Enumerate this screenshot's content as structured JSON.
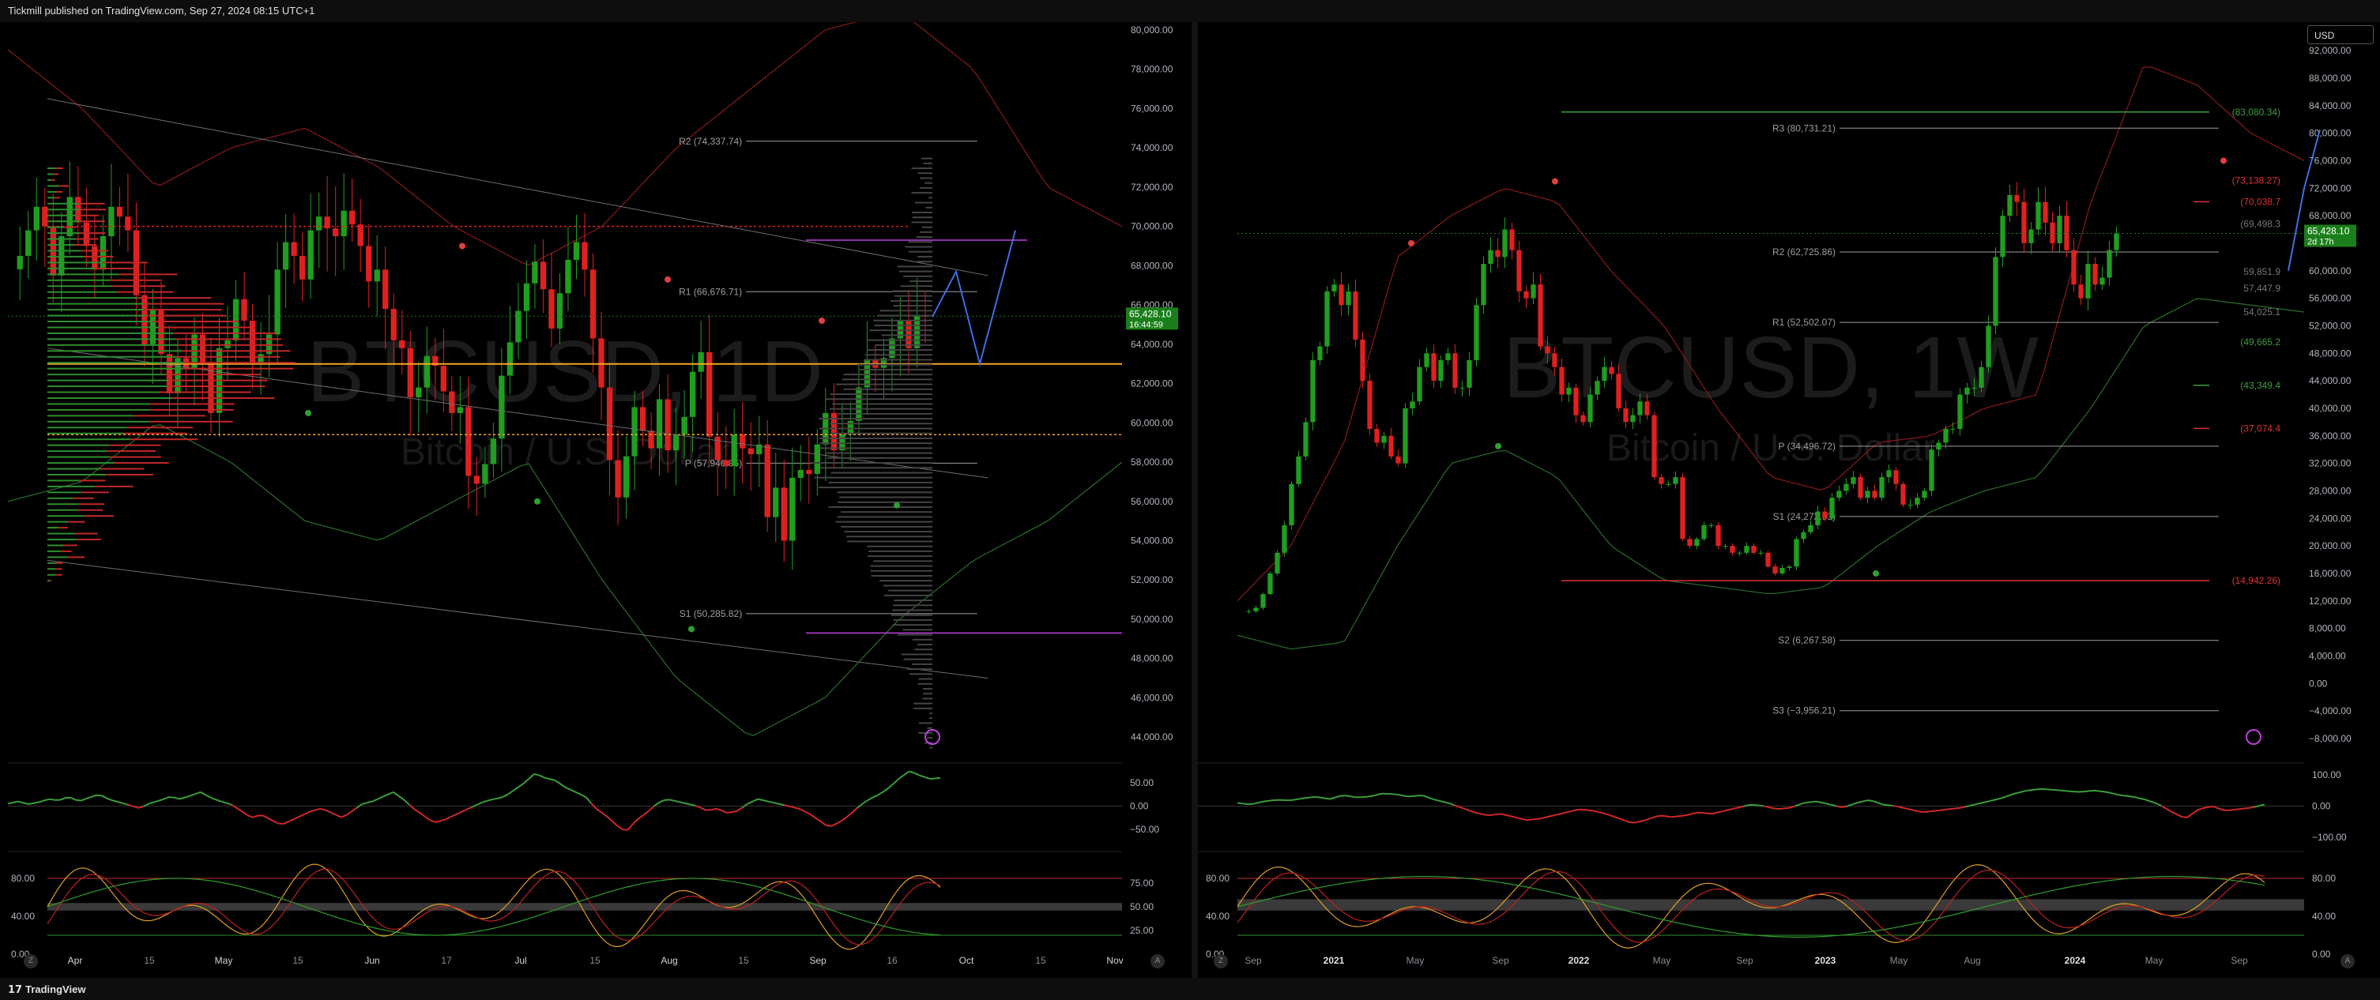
{
  "header": {
    "publisher": "Tickmill published on TradingView.com, Sep 27, 2024 08:15 UTC+1"
  },
  "footer": {
    "brand": "TradingView",
    "brand_mark": "17"
  },
  "currency_button": "USD",
  "corner_labels": {
    "left_z": "Z",
    "left_a": "A",
    "right_z": "Z",
    "right_a": "A"
  },
  "colors": {
    "bull": "#1f9e1f",
    "bear": "#e02020",
    "bg": "#000000",
    "price_tag": "#1a7f1a",
    "pivot_line": "#9e9e9e",
    "vpoc": "#f5a623",
    "purple": "#c040e0",
    "blue": "#3f6fe0"
  },
  "chart_data": [
    {
      "type": "line",
      "title": "BTCUSD, 1D",
      "subtitle": "Bitcoin / U.S. Dollar",
      "y_ticks": [
        "80,000.00",
        "78,000.00",
        "76,000.00",
        "74,000.00",
        "72,000.00",
        "70,000.00",
        "68,000.00",
        "66,000.00",
        "64,000.00",
        "62,000.00",
        "60,000.00",
        "58,000.00",
        "56,000.00",
        "54,000.00",
        "52,000.00",
        "50,000.00",
        "48,000.00",
        "46,000.00",
        "44,000.00"
      ],
      "ylim": [
        43000,
        80000
      ],
      "x_ticks": [
        "Apr",
        "15",
        "May",
        "15",
        "Jun",
        "17",
        "Jul",
        "15",
        "Aug",
        "15",
        "Sep",
        "16",
        "Oct",
        "15",
        "Nov"
      ],
      "last_price": "65,428.10",
      "countdown": "16:44:59",
      "pivots": [
        {
          "label": "R2 (74,337.74)",
          "value": 74337.74
        },
        {
          "label": "R1 (66,676.71)",
          "value": 66676.71
        },
        {
          "label": "P (57,946.85)",
          "value": 57946.85
        },
        {
          "label": "S1 (50,285.82)",
          "value": 50285.82
        }
      ],
      "horizontal_levels": [
        {
          "name": "orange",
          "value": 63000
        },
        {
          "name": "orange-dotted",
          "value": 59400
        },
        {
          "name": "red-dotted",
          "value": 70000
        },
        {
          "name": "purple-top",
          "value": 69300
        },
        {
          "name": "purple-bottom",
          "value": 49300
        }
      ],
      "price_series": [
        68500,
        69800,
        71000,
        70000,
        67500,
        69500,
        71500,
        70200,
        69000,
        67800,
        69500,
        71000,
        70500,
        69800,
        66500,
        64000,
        65800,
        63500,
        61500,
        63300,
        62800,
        64500,
        63000,
        60500,
        63800,
        64200,
        66300,
        65200,
        63000,
        63500,
        64500,
        67800,
        69200,
        68500,
        67300,
        69800,
        70500,
        69900,
        69500,
        70800,
        70100,
        69000,
        67200,
        67800,
        65800,
        64200,
        63800,
        61300,
        61800,
        63400,
        62900,
        61600,
        60500,
        60800,
        57300,
        56900,
        57900,
        59200,
        62400,
        64100,
        65700,
        67100,
        68200,
        66800,
        64800,
        66600,
        68300,
        69200,
        67800,
        64300,
        61800,
        58100,
        56200,
        58300,
        60800,
        59600,
        58700,
        61200,
        58600,
        59400,
        60300,
        62600,
        63600,
        59300,
        58100,
        57800,
        59400,
        58700,
        58400,
        58900,
        55200,
        56700,
        54000,
        57200,
        57600,
        57400,
        58900,
        60500,
        58600,
        59400,
        60100,
        61800,
        63200,
        62800,
        63300,
        64300,
        65200,
        63800,
        65500,
        65400
      ],
      "series": [
        {
          "name": "upper-band",
          "values": [
            79000,
            76000,
            72000,
            74000,
            75000,
            73000,
            70000,
            68000,
            70000,
            74000,
            77000,
            80000,
            81000,
            78000,
            72000,
            70000
          ]
        },
        {
          "name": "lower-band",
          "values": [
            56000,
            57000,
            60000,
            58000,
            55000,
            54000,
            56000,
            58000,
            52000,
            47000,
            44000,
            46000,
            50000,
            53000,
            55000,
            58000
          ]
        }
      ]
    },
    {
      "type": "line",
      "title": "BTCUSD, 1W",
      "subtitle": "Bitcoin / U.S. Dollar",
      "y_ticks": [
        "92,000.00",
        "88,000.00",
        "84,000.00",
        "80,000.00",
        "76,000.00",
        "72,000.00",
        "68,000.00",
        "64,000.00",
        "60,000.00",
        "56,000.00",
        "52,000.00",
        "48,000.00",
        "44,000.00",
        "40,000.00",
        "36,000.00",
        "32,000.00",
        "28,000.00",
        "24,000.00",
        "20,000.00",
        "16,000.00",
        "12,000.00",
        "8,000.00",
        "4,000.00",
        "0.00",
        "−4,000.00",
        "−8,000.00"
      ],
      "ylim": [
        -9500,
        95000
      ],
      "x_ticks": [
        "Sep",
        "2021",
        "May",
        "Sep",
        "2022",
        "May",
        "Sep",
        "2023",
        "May",
        "Aug",
        "2024",
        "May",
        "Sep"
      ],
      "last_price": "65,428.10",
      "countdown": "2d 17h",
      "pivots": [
        {
          "label": "R3 (80,731.21)",
          "value": 80731.21
        },
        {
          "label": "R2 (62,725.86)",
          "value": 62725.86
        },
        {
          "label": "R1 (52,502.07)",
          "value": 52502.07
        },
        {
          "label": "P (34,496.72)",
          "value": 34496.72
        },
        {
          "label": "S1 (24,272.93)",
          "value": 24272.93
        },
        {
          "label": "S2 (6,267.58)",
          "value": 6267.58
        },
        {
          "label": "S3 (−3,956.21)",
          "value": -3956.21
        }
      ],
      "right_labels": [
        {
          "label": "(83,080.34)",
          "value": 83080.34,
          "color": "#3d9e3d"
        },
        {
          "label": "(73,138.27)",
          "value": 73138.27,
          "color": "#e03030"
        },
        {
          "label": "(70,038.7",
          "value": 70038.7,
          "color": "#e03030"
        },
        {
          "label": "(69,498.3",
          "value": 66800,
          "color": "#777777"
        },
        {
          "label": "59,851.9",
          "value": 59851.9,
          "color": "#777777"
        },
        {
          "label": "57,447.9",
          "value": 57447.9,
          "color": "#777777"
        },
        {
          "label": "54,025.1",
          "value": 54025.1,
          "color": "#777777"
        },
        {
          "label": "(49,665.2",
          "value": 49665.2,
          "color": "#3d9e3d"
        },
        {
          "label": "(43,349.4",
          "value": 43349.4,
          "color": "#3d9e3d"
        },
        {
          "label": "(37,074.4",
          "value": 37074.4,
          "color": "#e03030"
        },
        {
          "label": "(14,942.26)",
          "value": 14942.26,
          "color": "#e03030"
        }
      ],
      "price_series": [
        10500,
        11000,
        13000,
        16000,
        19000,
        23000,
        29000,
        33000,
        38000,
        47000,
        49000,
        57000,
        58000,
        55000,
        57000,
        50000,
        44000,
        37000,
        35000,
        36000,
        33000,
        32000,
        40000,
        41000,
        46000,
        48000,
        44000,
        47000,
        48000,
        43000,
        43000,
        47000,
        55000,
        61000,
        63000,
        62000,
        66000,
        63000,
        57000,
        56000,
        58000,
        49000,
        48000,
        46000,
        42000,
        43000,
        39000,
        38000,
        42000,
        44000,
        46000,
        45000,
        40000,
        38000,
        39000,
        41000,
        39000,
        30000,
        29000,
        29000,
        30000,
        21000,
        20000,
        21000,
        23000,
        23000,
        20000,
        20000,
        19000,
        19000,
        20000,
        19000,
        19000,
        17000,
        16000,
        16800,
        17000,
        21000,
        22000,
        23000,
        25000,
        24000,
        27000,
        28000,
        29000,
        30000,
        27000,
        28000,
        27000,
        30000,
        31000,
        29000,
        26000,
        26000,
        27000,
        28000,
        34000,
        35000,
        37000,
        37000,
        42000,
        43000,
        43000,
        46000,
        52000,
        62000,
        68000,
        71000,
        70000,
        64000,
        66000,
        70000,
        67000,
        64000,
        68000,
        63000,
        58000,
        56000,
        61000,
        58000,
        59000,
        63000,
        65400
      ],
      "series": [
        {
          "name": "upper-band",
          "values": [
            12000,
            20000,
            35000,
            62000,
            68000,
            72000,
            70000,
            60000,
            52000,
            40000,
            30000,
            28000,
            35000,
            36000,
            40000,
            42000,
            70000,
            90000,
            87000,
            80000,
            76000
          ]
        },
        {
          "name": "lower-band",
          "values": [
            7000,
            5000,
            6000,
            20000,
            32000,
            34000,
            30000,
            20000,
            15000,
            14000,
            13000,
            14000,
            20000,
            25000,
            28000,
            30000,
            40000,
            52000,
            56000,
            55000,
            54000
          ]
        }
      ]
    },
    {
      "type": "line",
      "title": "",
      "panel": "left-oscillator-1",
      "y_ticks": [
        "50.00",
        "0.00",
        "−50.00"
      ],
      "ylim": [
        -80,
        80
      ],
      "values": [
        5,
        10,
        4,
        8,
        15,
        12,
        20,
        10,
        18,
        25,
        14,
        8,
        2,
        -5,
        6,
        12,
        20,
        15,
        22,
        30,
        18,
        10,
        4,
        -10,
        -25,
        -18,
        -30,
        -40,
        -30,
        -20,
        -10,
        -5,
        -15,
        -25,
        -10,
        5,
        10,
        20,
        30,
        15,
        -5,
        -20,
        -35,
        -30,
        -20,
        -10,
        0,
        10,
        15,
        20,
        35,
        50,
        70,
        60,
        55,
        40,
        30,
        20,
        -5,
        -20,
        -40,
        -55,
        -30,
        -15,
        5,
        15,
        10,
        5,
        0,
        -10,
        -5,
        -15,
        -10,
        5,
        15,
        10,
        5,
        0,
        -5,
        -15,
        -30,
        -45,
        -35,
        -20,
        0,
        15,
        25,
        40,
        60,
        75,
        65,
        58,
        60
      ]
    },
    {
      "type": "line",
      "title": "",
      "panel": "left-oscillator-2",
      "y_ticks": [
        "75.00",
        "50.00",
        "25.00"
      ],
      "left_ticks": [
        "80.00",
        "40.00",
        "0.00"
      ],
      "ylim": [
        0,
        100
      ]
    },
    {
      "type": "line",
      "title": "",
      "panel": "right-oscillator-1",
      "y_ticks": [
        "100.00",
        "0.00",
        "−100.00"
      ],
      "ylim": [
        -120,
        120
      ],
      "values": [
        10,
        5,
        15,
        20,
        18,
        25,
        30,
        22,
        35,
        28,
        30,
        40,
        38,
        30,
        35,
        20,
        10,
        -5,
        -20,
        -30,
        -25,
        -35,
        -45,
        -40,
        -30,
        -20,
        -10,
        -15,
        -25,
        -40,
        -55,
        -45,
        -30,
        -35,
        -30,
        -20,
        -25,
        -15,
        -5,
        5,
        0,
        -10,
        -5,
        10,
        15,
        5,
        -5,
        10,
        20,
        5,
        0,
        -10,
        -20,
        -15,
        -10,
        -5,
        5,
        15,
        25,
        40,
        50,
        55,
        52,
        48,
        45,
        50,
        45,
        35,
        30,
        20,
        5,
        -20,
        -40,
        -10,
        0,
        -15,
        -10,
        -5,
        5
      ]
    },
    {
      "type": "line",
      "title": "",
      "panel": "right-oscillator-2",
      "y_ticks": [
        "80.00",
        "40.00",
        "0.00"
      ],
      "left_ticks": [
        "80.00",
        "40.00",
        "0.00"
      ],
      "ylim": [
        0,
        100
      ]
    }
  ]
}
